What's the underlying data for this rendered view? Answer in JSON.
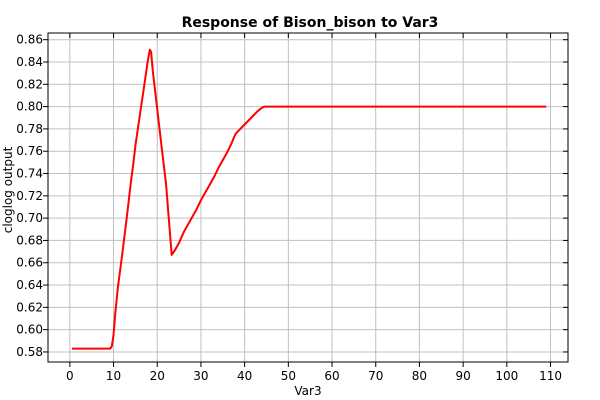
{
  "chart_data": {
    "type": "line",
    "title": "Response of Bison_bison to Var3",
    "xlabel": "Var3",
    "ylabel": "cloglog output",
    "xlim": [
      -5,
      114
    ],
    "ylim": [
      0.571,
      0.866
    ],
    "xticks": [
      0,
      10,
      20,
      30,
      40,
      50,
      60,
      70,
      80,
      90,
      100,
      110
    ],
    "yticks": [
      0.58,
      0.6,
      0.62,
      0.64,
      0.66,
      0.68,
      0.7,
      0.72,
      0.74,
      0.76,
      0.78,
      0.8,
      0.82,
      0.84,
      0.86
    ],
    "xtick_labels": [
      "0",
      "10",
      "20",
      "30",
      "40",
      "50",
      "60",
      "70",
      "80",
      "90",
      "100",
      "110"
    ],
    "ytick_labels": [
      "0.58",
      "0.60",
      "0.62",
      "0.64",
      "0.66",
      "0.68",
      "0.70",
      "0.72",
      "0.74",
      "0.76",
      "0.78",
      "0.80",
      "0.82",
      "0.84",
      "0.86"
    ],
    "grid": true,
    "series": [
      {
        "color": "#ff0000",
        "x": [
          0.5,
          9.2,
          9.6,
          10.0,
          10.4,
          11,
          12,
          13,
          14,
          14.5,
          15,
          16,
          17,
          17.8,
          18.3,
          18.6,
          19,
          20,
          21,
          22,
          23.3,
          24,
          25,
          26,
          27,
          28,
          29,
          30,
          31,
          32,
          33,
          34,
          35,
          36,
          37,
          37.6,
          38,
          39,
          40,
          41,
          42,
          43,
          44,
          44.5,
          50,
          60,
          70,
          80,
          90,
          100,
          109
        ],
        "y": [
          0.583,
          0.583,
          0.585,
          0.595,
          0.615,
          0.638,
          0.668,
          0.7,
          0.733,
          0.748,
          0.765,
          0.792,
          0.818,
          0.84,
          0.851,
          0.849,
          0.831,
          0.798,
          0.764,
          0.731,
          0.667,
          0.671,
          0.678,
          0.687,
          0.694,
          0.701,
          0.708,
          0.716,
          0.723,
          0.73,
          0.737,
          0.745,
          0.752,
          0.759,
          0.767,
          0.773,
          0.776,
          0.78,
          0.784,
          0.788,
          0.792,
          0.796,
          0.799,
          0.8,
          0.8,
          0.8,
          0.8,
          0.8,
          0.8,
          0.8,
          0.8
        ]
      }
    ]
  }
}
